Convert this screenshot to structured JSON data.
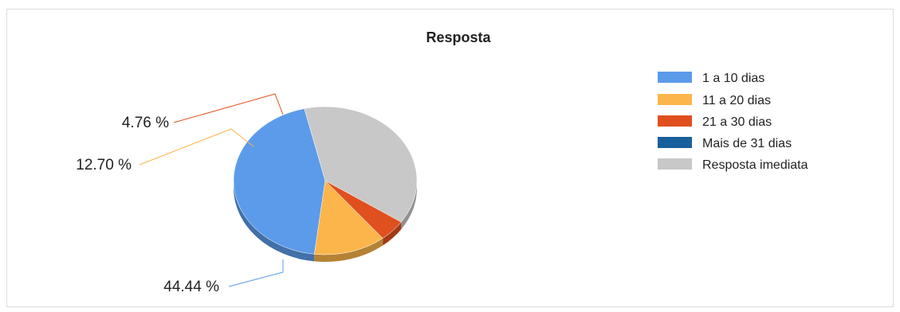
{
  "chart_data": {
    "type": "pie",
    "title": "Resposta",
    "legend_position": "right",
    "slices": [
      {
        "label": "1 a 10 dias",
        "value": 44.44,
        "display": "44.44 %",
        "color": "#5b9bea"
      },
      {
        "label": "11 a 20 dias",
        "value": 12.7,
        "display": "12.70 %",
        "color": "#fbb54a"
      },
      {
        "label": "21 a 30 dias",
        "value": 4.76,
        "display": "4.76 %",
        "color": "#e0501e"
      },
      {
        "label": "Mais de 31 dias",
        "value": 0,
        "display": "",
        "color": "#18609c"
      },
      {
        "label": "Resposta imediata",
        "value": 38.1,
        "display": "",
        "color": "#c8c8c8"
      }
    ]
  }
}
